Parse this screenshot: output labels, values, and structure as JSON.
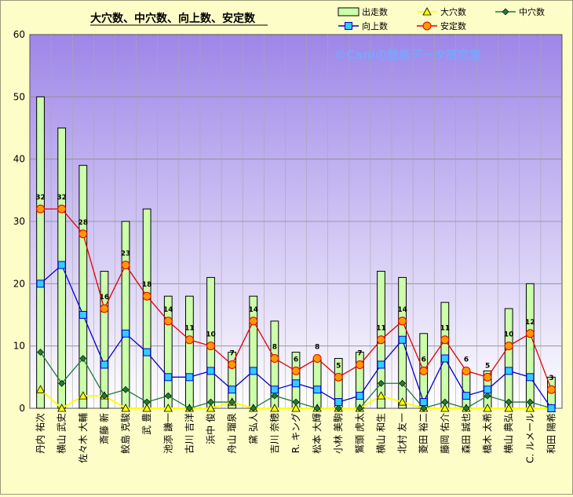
{
  "chart_data": {
    "type": "bar",
    "title": "大穴数、中穴数、向上数、安定数",
    "watermark": "©Caniの競馬データ研究室",
    "ylim": [
      0,
      60
    ],
    "yticks": [
      0,
      10,
      20,
      30,
      40,
      50,
      60
    ],
    "grid": true,
    "legend_position": "top-right",
    "categories": [
      "丹内 祐次",
      "横山 武史",
      "佐々木 大輔",
      "斎藤 新",
      "鮫島 克駿",
      "武 豊",
      "池添 謙一",
      "古川 吉洋",
      "浜中 俊",
      "舟山 瑠泉",
      "黛 弘人",
      "吉川 奈穂",
      "R. キング",
      "松本 大輝",
      "小林 美駒",
      "鷲頭 虎太",
      "横山 和生",
      "北村 友一",
      "菱田 裕二",
      "藤岡 佑介",
      "森田 誠也",
      "橋木 太希",
      "横山 典弘",
      "C. ルメール",
      "和田 陽希"
    ],
    "series": [
      {
        "name": "出走数",
        "type": "bar",
        "color": "#ccffaa",
        "values": [
          50,
          45,
          39,
          22,
          30,
          32,
          18,
          18,
          21,
          9,
          18,
          14,
          9,
          8,
          8,
          9,
          22,
          21,
          12,
          17,
          6,
          6,
          16,
          20,
          5
        ]
      },
      {
        "name": "大穴数",
        "type": "line",
        "color": "#ffff00",
        "marker": "triangle",
        "values": [
          3,
          0,
          2,
          2,
          0,
          0,
          0,
          0,
          0,
          1,
          0,
          0,
          0,
          0,
          0,
          0,
          2,
          1,
          0,
          0,
          0,
          0,
          0,
          0,
          0
        ]
      },
      {
        "name": "中穴数",
        "type": "line",
        "color": "#1f7a3a",
        "marker": "diamond",
        "values": [
          9,
          4,
          8,
          2,
          3,
          1,
          2,
          0,
          1,
          1,
          0,
          2,
          1,
          0,
          0,
          0,
          4,
          4,
          0,
          1,
          0,
          2,
          1,
          1,
          0
        ]
      },
      {
        "name": "向上数",
        "type": "line",
        "color": "#0000cc",
        "marker": "square",
        "values": [
          20,
          23,
          15,
          7,
          12,
          9,
          5,
          5,
          6,
          3,
          6,
          3,
          4,
          3,
          1,
          2,
          7,
          11,
          1,
          8,
          2,
          3,
          6,
          5,
          0
        ]
      },
      {
        "name": "安定数",
        "type": "line",
        "color": "#e00000",
        "marker": "circle",
        "values": [
          32,
          32,
          28,
          16,
          23,
          18,
          14,
          11,
          10,
          7,
          14,
          8,
          6,
          8,
          5,
          7,
          11,
          14,
          6,
          11,
          6,
          5,
          10,
          12,
          3
        ]
      }
    ]
  }
}
